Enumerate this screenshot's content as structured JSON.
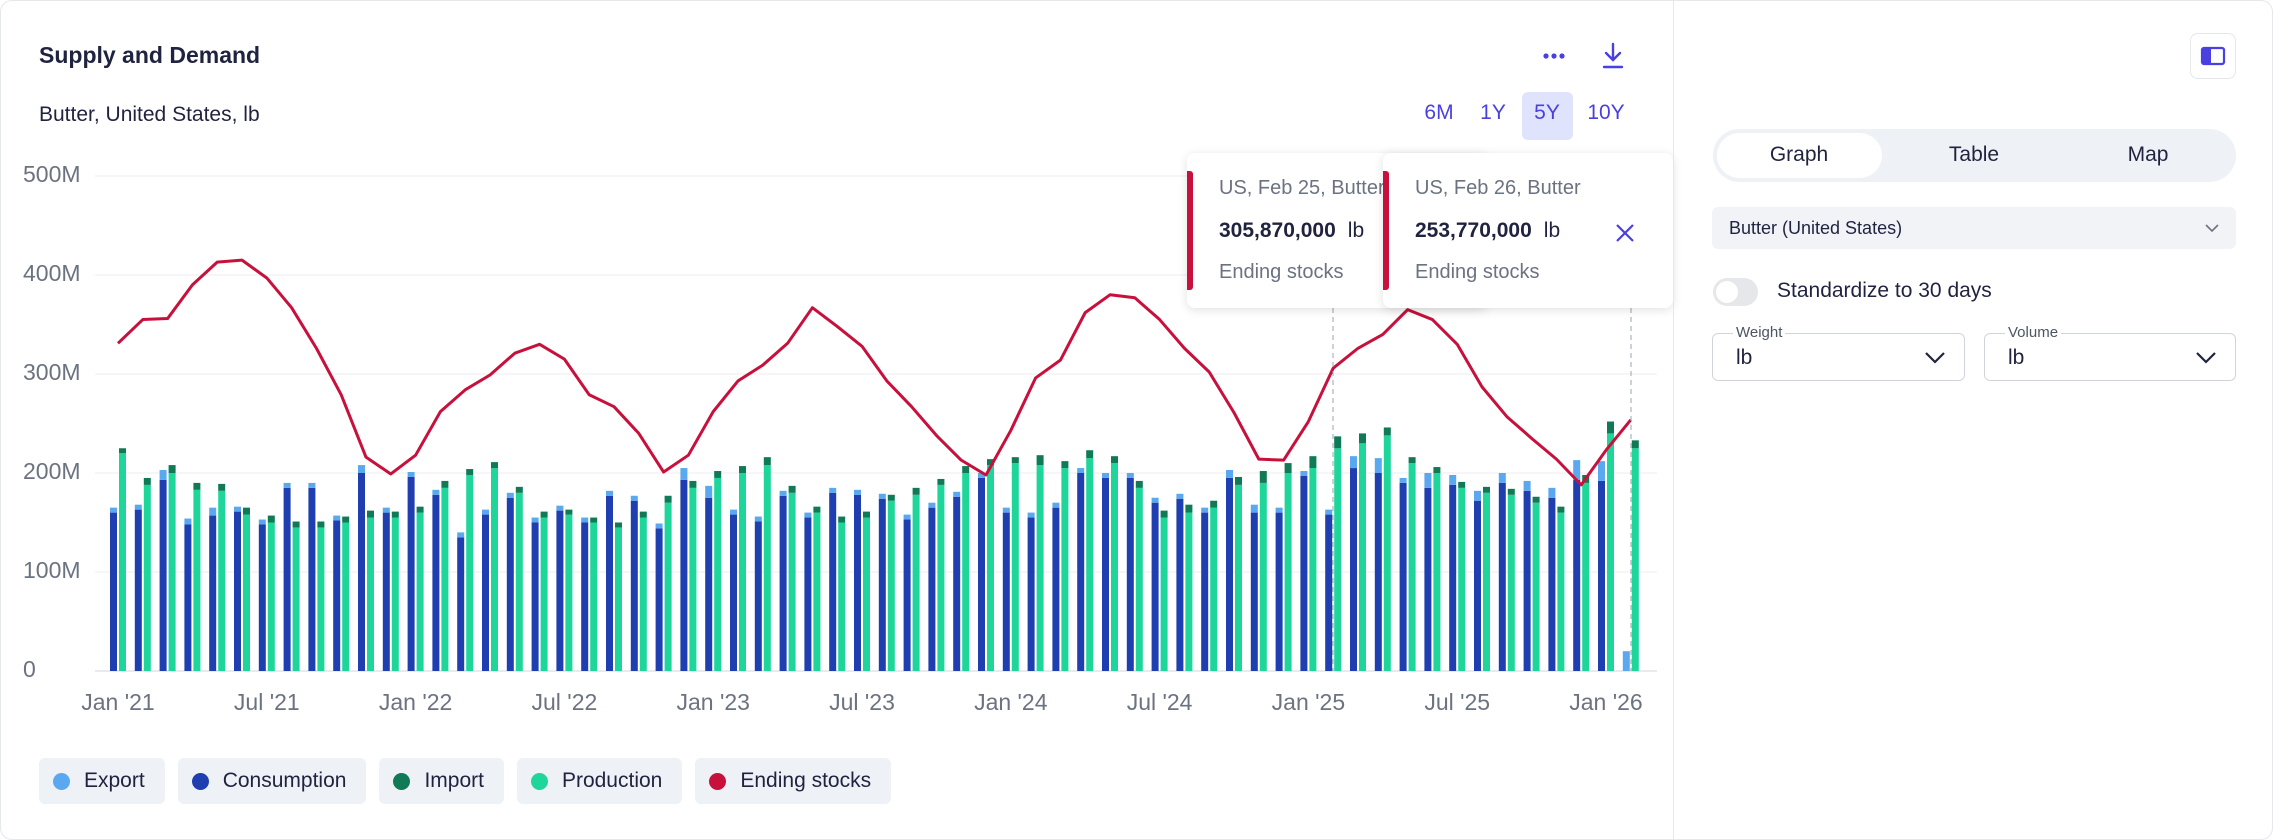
{
  "header": {
    "title": "Supply and Demand",
    "subtitle": "Butter, United States, lb",
    "ranges": [
      "6M",
      "1Y",
      "5Y",
      "10Y"
    ],
    "active_range": "5Y"
  },
  "chart_data": {
    "type": "bar",
    "categories": [
      "Jan '21",
      null,
      null,
      null,
      null,
      null,
      "Jul '21",
      null,
      null,
      null,
      null,
      null,
      "Jan '22",
      null,
      null,
      null,
      null,
      null,
      "Jul '22",
      null,
      null,
      null,
      null,
      null,
      "Jan '23",
      null,
      null,
      null,
      null,
      null,
      "Jul '23",
      null,
      null,
      null,
      null,
      null,
      "Jan '24",
      null,
      null,
      null,
      null,
      null,
      "Jul '24",
      null,
      null,
      null,
      null,
      null,
      "Jan '25",
      null,
      null,
      null,
      null,
      null,
      "Jul '25",
      null,
      null,
      null,
      null,
      null,
      "Jan '26",
      null
    ],
    "ylim": [
      0,
      500000000
    ],
    "yticks": [
      0,
      {
        "value": 100000000,
        "label": "100M"
      },
      {
        "value": 200000000,
        "label": "200M"
      },
      {
        "value": 300000000,
        "label": "300M"
      },
      {
        "value": 400000000,
        "label": "400M"
      },
      {
        "value": 500000000,
        "label": "500M"
      }
    ],
    "grid": true,
    "series": [
      {
        "name": "Export",
        "color": "#5aa8f0",
        "type": "bar",
        "values": [
          5000000,
          5000000,
          10000000,
          6000000,
          8000000,
          5000000,
          5000000,
          5000000,
          5000000,
          5000000,
          8000000,
          5000000,
          5000000,
          5000000,
          5000000,
          5000000,
          5000000,
          5000000,
          5000000,
          5000000,
          5000000,
          5000000,
          5000000,
          12000000,
          12000000,
          5000000,
          5000000,
          5000000,
          5000000,
          5000000,
          5000000,
          5000000,
          5000000,
          5000000,
          5000000,
          5000000,
          5000000,
          5000000,
          5000000,
          5000000,
          5000000,
          5000000,
          5000000,
          5000000,
          5000000,
          8000000,
          8000000,
          5000000,
          5000000,
          5000000,
          12000000,
          15000000,
          5000000,
          15000000,
          10000000,
          10000000,
          10000000,
          10000000,
          10000000,
          20000000,
          20000000,
          20000000
        ]
      },
      {
        "name": "Consumption",
        "color": "#1f3fb0",
        "type": "bar",
        "values": [
          160000000,
          163000000,
          193000000,
          148000000,
          157000000,
          161000000,
          148000000,
          185000000,
          185000000,
          152000000,
          200000000,
          160000000,
          196000000,
          178000000,
          135000000,
          158000000,
          175000000,
          150000000,
          162000000,
          150000000,
          177000000,
          172000000,
          144000000,
          193000000,
          175000000,
          158000000,
          151000000,
          177000000,
          155000000,
          180000000,
          178000000,
          174000000,
          153000000,
          165000000,
          176000000,
          195000000,
          160000000,
          155000000,
          165000000,
          200000000,
          195000000,
          195000000,
          170000000,
          174000000,
          160000000,
          195000000,
          160000000,
          160000000,
          197000000,
          158000000,
          205000000,
          200000000,
          190000000,
          185000000,
          188000000,
          172000000,
          190000000,
          182000000,
          175000000,
          193000000,
          192000000,
          0
        ]
      },
      {
        "name": "Import",
        "color": "#0f7a55",
        "type": "bar",
        "values": [
          5000000,
          7000000,
          8000000,
          7000000,
          7000000,
          7000000,
          7000000,
          6000000,
          6000000,
          6000000,
          7000000,
          6000000,
          6000000,
          7000000,
          6000000,
          6000000,
          6000000,
          6000000,
          5000000,
          5000000,
          5000000,
          6000000,
          7000000,
          7000000,
          7000000,
          7000000,
          8000000,
          7000000,
          6000000,
          6000000,
          6000000,
          6000000,
          7000000,
          6000000,
          7000000,
          6000000,
          6000000,
          10000000,
          7000000,
          8000000,
          7000000,
          7000000,
          7000000,
          8000000,
          7000000,
          8000000,
          12000000,
          10000000,
          12000000,
          12000000,
          10000000,
          8000000,
          6000000,
          6000000,
          6000000,
          6000000,
          6000000,
          6000000,
          6000000,
          8000000,
          12000000,
          8000000
        ]
      },
      {
        "name": "Production",
        "color": "#1fd69a",
        "type": "bar",
        "values": [
          220000000,
          188000000,
          200000000,
          183000000,
          182000000,
          158000000,
          150000000,
          145000000,
          145000000,
          150000000,
          155000000,
          155000000,
          160000000,
          185000000,
          198000000,
          205000000,
          180000000,
          155000000,
          158000000,
          150000000,
          145000000,
          155000000,
          170000000,
          185000000,
          195000000,
          200000000,
          208000000,
          180000000,
          160000000,
          150000000,
          155000000,
          172000000,
          178000000,
          188000000,
          200000000,
          208000000,
          210000000,
          208000000,
          205000000,
          215000000,
          210000000,
          185000000,
          155000000,
          160000000,
          165000000,
          188000000,
          190000000,
          200000000,
          205000000,
          225000000,
          230000000,
          238000000,
          210000000,
          200000000,
          185000000,
          180000000,
          178000000,
          170000000,
          160000000,
          190000000,
          240000000,
          225000000
        ]
      },
      {
        "name": "Ending stocks",
        "color": "#c8103c",
        "type": "line",
        "values": [
          331000000,
          355000000,
          356000000,
          390000000,
          413000000,
          415000000,
          397000000,
          367000000,
          326000000,
          279000000,
          216000000,
          199000000,
          218000000,
          262000000,
          284000000,
          299000000,
          321000000,
          330000000,
          315000000,
          279000000,
          267000000,
          240000000,
          201000000,
          218000000,
          262000000,
          293000000,
          309000000,
          331000000,
          367000000,
          348000000,
          328000000,
          293000000,
          267000000,
          238000000,
          213000000,
          198000000,
          243000000,
          296000000,
          314000000,
          362000000,
          380000000,
          377000000,
          355000000,
          326000000,
          302000000,
          261000000,
          214000000,
          213000000,
          252000000,
          305870000,
          326000000,
          340000000,
          365000000,
          355000000,
          330000000,
          287000000,
          257000000,
          235000000,
          214000000,
          188000000,
          223000000,
          253770000
        ]
      }
    ]
  },
  "tooltips": [
    {
      "title": "US, Feb 25, Butter",
      "value_label": "305,870,000",
      "unit": "lb",
      "series": "Ending stocks"
    },
    {
      "title": "US, Feb 26, Butter",
      "value_label": "253,770,000",
      "unit": "lb",
      "series": "Ending stocks"
    }
  ],
  "side_panel": {
    "tabs": [
      "Graph",
      "Table",
      "Map"
    ],
    "active_tab": "Graph",
    "commodity": "Butter (United States)",
    "toggle_label": "Standardize to 30 days",
    "weight": {
      "label": "Weight",
      "value": "lb"
    },
    "volume": {
      "label": "Volume",
      "value": "lb"
    }
  }
}
